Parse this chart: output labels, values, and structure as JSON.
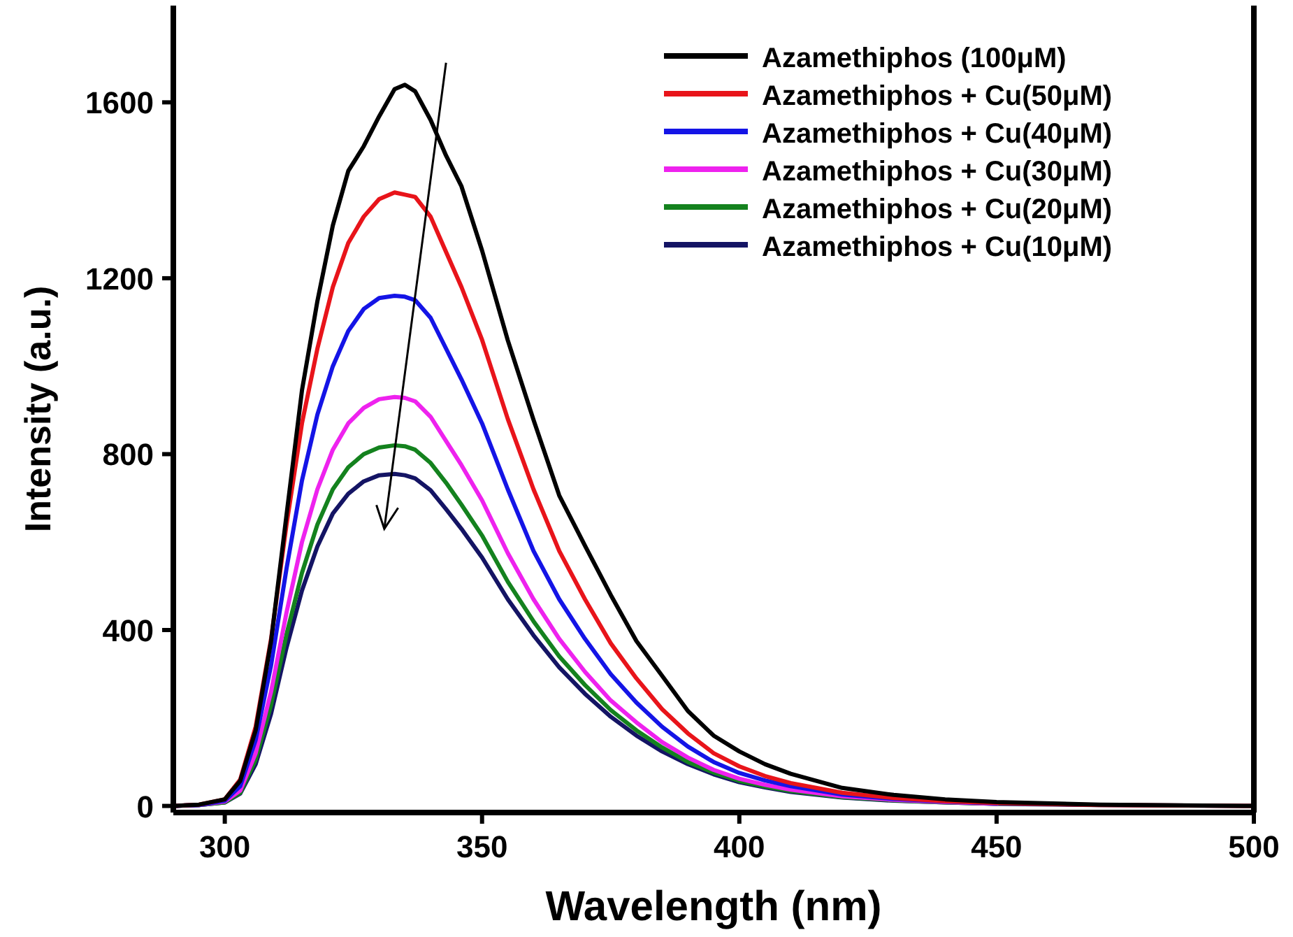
{
  "chart_data": {
    "type": "line",
    "xlabel": "Wavelength (nm)",
    "ylabel": "Intensity (a.u.)",
    "xlim": [
      290,
      500
    ],
    "xticks": [
      300,
      350,
      400,
      450,
      500
    ],
    "ylim": [
      -15,
      1820
    ],
    "yticks": [
      0,
      400,
      800,
      1200,
      1600
    ],
    "grid": false,
    "legend": "top right",
    "marker": "none",
    "line_style": "solid",
    "x": [
      290,
      295,
      300,
      303,
      306,
      309,
      312,
      315,
      318,
      321,
      324,
      327,
      330,
      333,
      335,
      337,
      340,
      343,
      346,
      350,
      355,
      360,
      365,
      370,
      375,
      380,
      385,
      390,
      395,
      400,
      405,
      410,
      420,
      430,
      440,
      450,
      470,
      500
    ],
    "series": [
      {
        "name": "Azamethiphos (100μM)",
        "color": "#000000",
        "values": [
          0,
          3,
          15,
          57,
          172,
          375,
          662,
          945,
          1148,
          1320,
          1444,
          1500,
          1568,
          1630,
          1640,
          1625,
          1560,
          1479,
          1409,
          1263,
          1059,
          878,
          706,
          592,
          480,
          375,
          296,
          216,
          160,
          124,
          95,
          73,
          41,
          25,
          15,
          9,
          3,
          0
        ]
      },
      {
        "name": "Azamethiphos + Cu(50μM)",
        "color": "#e8141a",
        "values": [
          0,
          3,
          15,
          60,
          180,
          380,
          640,
          870,
          1040,
          1180,
          1280,
          1340,
          1380,
          1395,
          1390,
          1385,
          1340,
          1260,
          1180,
          1060,
          880,
          720,
          580,
          470,
          370,
          290,
          220,
          165,
          120,
          90,
          68,
          52,
          30,
          18,
          11,
          7,
          2,
          0
        ]
      },
      {
        "name": "Azamethiphos + Cu(40μM)",
        "color": "#1414e6",
        "values": [
          0,
          2,
          12,
          45,
          150,
          320,
          540,
          740,
          890,
          1000,
          1080,
          1130,
          1155,
          1160,
          1158,
          1150,
          1110,
          1040,
          970,
          870,
          720,
          580,
          470,
          380,
          300,
          235,
          180,
          135,
          100,
          75,
          58,
          45,
          26,
          16,
          10,
          6,
          null,
          null
        ]
      },
      {
        "name": "Azamethiphos + Cu(30μM)",
        "color": "#ee22ee",
        "values": [
          0,
          2,
          10,
          35,
          120,
          260,
          440,
          600,
          720,
          810,
          870,
          905,
          925,
          930,
          928,
          920,
          885,
          830,
          775,
          695,
          575,
          470,
          380,
          305,
          240,
          190,
          145,
          110,
          82,
          62,
          48,
          37,
          22,
          14,
          9,
          5,
          null,
          null
        ]
      },
      {
        "name": "Azamethiphos + Cu(20μM)",
        "color": "#14821e",
        "values": [
          0,
          2,
          8,
          30,
          105,
          230,
          390,
          530,
          640,
          720,
          770,
          800,
          815,
          820,
          818,
          810,
          780,
          735,
          685,
          615,
          510,
          420,
          340,
          275,
          218,
          172,
          133,
          100,
          76,
          57,
          44,
          34,
          20,
          13,
          8,
          5,
          null,
          null
        ]
      },
      {
        "name": "Azamethiphos + Cu(10μM)",
        "color": "#141464",
        "values": [
          0,
          2,
          8,
          28,
          95,
          210,
          360,
          490,
          590,
          665,
          710,
          738,
          752,
          755,
          752,
          745,
          718,
          675,
          630,
          565,
          470,
          388,
          315,
          255,
          203,
          160,
          124,
          95,
          72,
          54,
          42,
          32,
          19,
          12,
          8,
          5,
          2,
          0
        ]
      }
    ]
  }
}
